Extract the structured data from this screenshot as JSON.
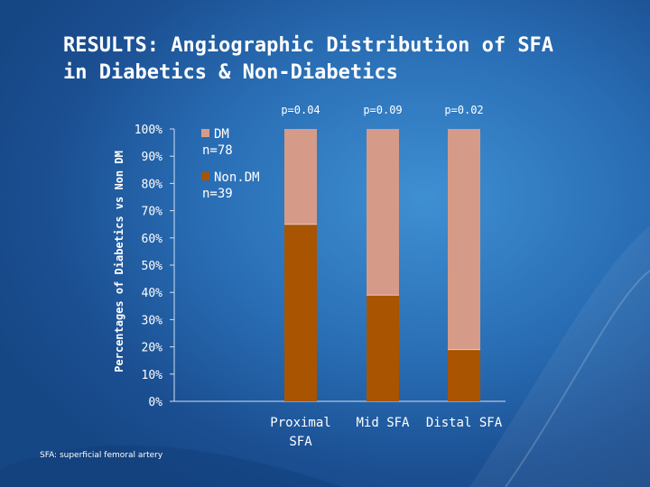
{
  "slide": {
    "title_line1": "RESULTS: Angiographic Distribution of SFA",
    "title_line2": "in Diabetics & Non-Diabetics",
    "footnote": "SFA: superficial femoral artery"
  },
  "chart_data": {
    "type": "bar",
    "stacked": true,
    "percent_stacked": true,
    "categories": [
      [
        "Proximal",
        "SFA"
      ],
      [
        "Mid SFA"
      ],
      [
        "Distal SFA"
      ]
    ],
    "series": [
      {
        "name": "Non.DM n=39",
        "legend_lines": [
          "Non.DM",
          "n=39"
        ],
        "color": "#a85400",
        "values": [
          65,
          39,
          19
        ]
      },
      {
        "name": "DM n=78",
        "legend_lines": [
          "DM",
          "n=78"
        ],
        "color": "#d59b88",
        "values": [
          35,
          61,
          81
        ]
      }
    ],
    "annotations": [
      "p=0.04",
      "p=0.09",
      "p=0.02"
    ],
    "ylabel": "Percentages of Diabetics vs Non DM",
    "ylim": [
      0,
      100
    ],
    "yticks": [
      0,
      10,
      20,
      30,
      40,
      50,
      60,
      70,
      80,
      90,
      100
    ],
    "ytick_suffix": "%",
    "grid": false,
    "legend_position": "top-left"
  }
}
